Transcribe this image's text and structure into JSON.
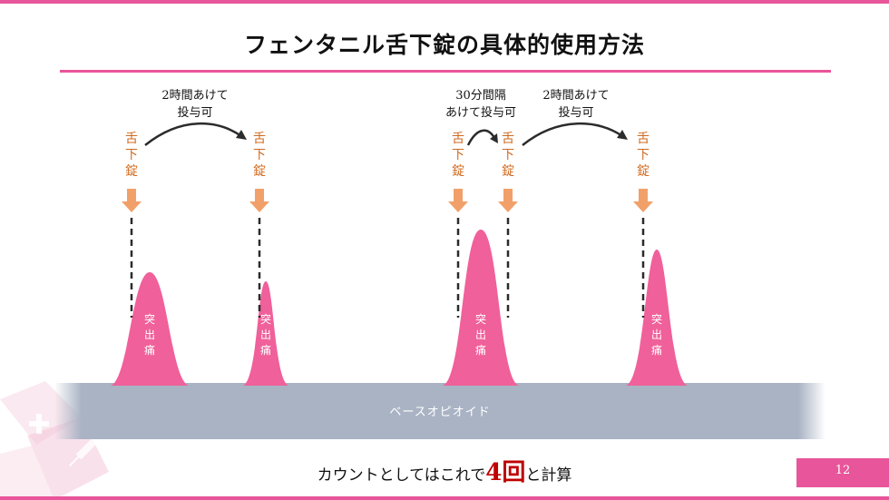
{
  "title": "フェンタニル舌下錠の具体的使用方法",
  "drug_label": [
    "舌",
    "下",
    "錠"
  ],
  "peak_label": [
    "突",
    "出",
    "痛"
  ],
  "notes": {
    "first_interval": [
      "2時間あけて",
      "投与可"
    ],
    "second_interval": [
      "30分間隔",
      "あけて投与可"
    ],
    "third_interval": [
      "2時間あけて",
      "投与可"
    ]
  },
  "baseline_label": "ベースオピオイド",
  "summary": {
    "prefix": "カウントとしてはこれで",
    "count": "4回",
    "suffix": "と計算"
  },
  "page_number": "12",
  "colors": {
    "accent": "#e8559a",
    "peak": "#f0609a",
    "drug": "#d06a1f",
    "arrow": "#f2a06a",
    "baseline": "#a9b3c4",
    "emphasis": "#c00000"
  }
}
